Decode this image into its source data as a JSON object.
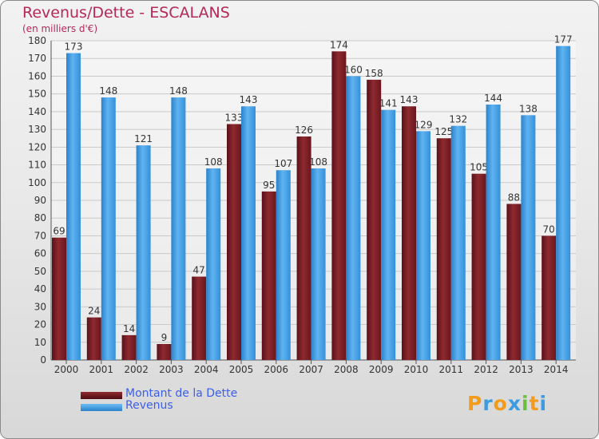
{
  "chart_data": {
    "type": "bar",
    "title": "Revenus/Dette - ESCALANS",
    "subtitle": "(en milliers d'€)",
    "categories": [
      "2000",
      "2001",
      "2002",
      "2003",
      "2004",
      "2005",
      "2006",
      "2007",
      "2008",
      "2009",
      "2010",
      "2011",
      "2012",
      "2013",
      "2014"
    ],
    "series": [
      {
        "name": "Montant de la Dette",
        "color": "#7a1f25",
        "values": [
          69,
          24,
          14,
          9,
          47,
          133,
          95,
          126,
          174,
          158,
          143,
          125,
          105,
          88,
          70
        ]
      },
      {
        "name": "Revenus",
        "color": "#3d9be0",
        "values": [
          173,
          148,
          121,
          148,
          108,
          143,
          107,
          108,
          160,
          141,
          129,
          132,
          144,
          138,
          177
        ]
      }
    ],
    "ylim": [
      0,
      180
    ],
    "yticks": [
      0,
      10,
      20,
      30,
      40,
      50,
      60,
      70,
      80,
      90,
      100,
      110,
      120,
      130,
      140,
      150,
      160,
      170,
      180
    ],
    "grid": true,
    "legend_position": "bottom-left"
  },
  "logo": {
    "letters": [
      "P",
      "r",
      "o",
      "x",
      "i",
      "t",
      "i"
    ],
    "colors": [
      "#f39b1a",
      "#3d9be0",
      "#f39b1a",
      "#3d9be0",
      "#6cbf3c",
      "#f39b1a",
      "#3d9be0"
    ]
  }
}
